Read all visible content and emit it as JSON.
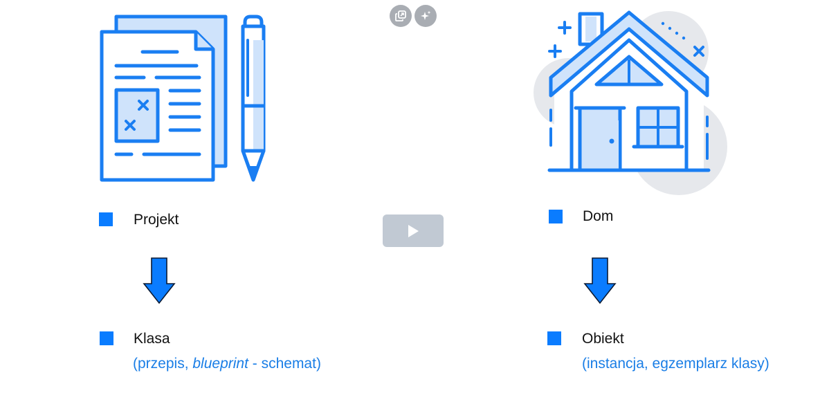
{
  "toolbar": {
    "copy_icon": "copy-icon",
    "sparkle_icon": "sparkle-icon"
  },
  "left": {
    "illustration": "document-pen-icon",
    "top_label": "Projekt",
    "bottom_label": "Klasa",
    "sub_prefix": "(przepis, ",
    "sub_italic": "blueprint",
    "sub_suffix": " - schemat)"
  },
  "right": {
    "illustration": "house-icon",
    "top_label": "Dom",
    "bottom_label": "Obiekt",
    "sub": "(instancja, egzemplarz klasy)"
  },
  "player": {
    "play_icon": "play-icon"
  },
  "colors": {
    "accent": "#0a7cff",
    "icon_stroke": "#1a7ef2",
    "icon_fill": "#cfe3fb",
    "subtext": "#1a7ee6"
  }
}
